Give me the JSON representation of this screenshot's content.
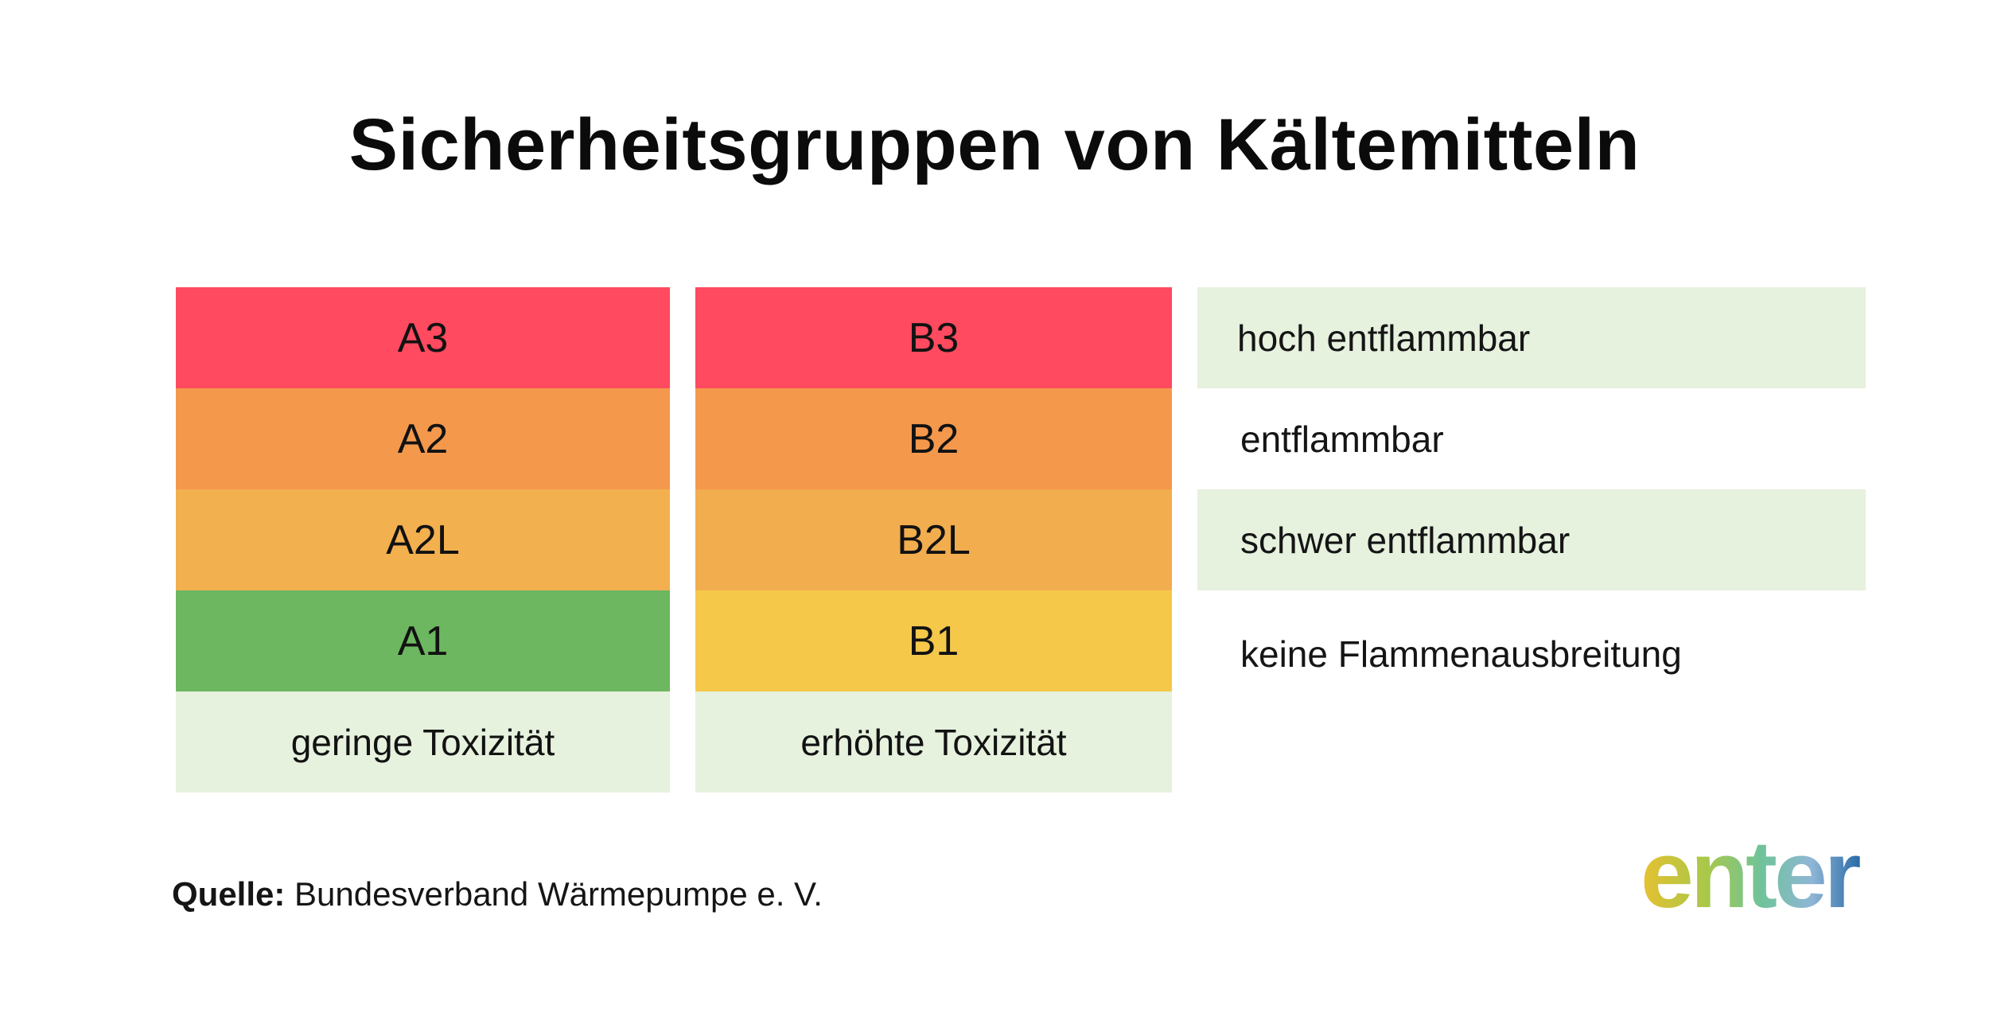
{
  "title": "Sicherheitsgruppen von Kältemitteln",
  "table": {
    "column_a": {
      "cells": [
        "A3",
        "A2",
        "A2L",
        "A1"
      ],
      "footer": "geringe Toxizität"
    },
    "column_b": {
      "cells": [
        "B3",
        "B2",
        "B2L",
        "B1"
      ],
      "footer": "erhöhte Toxizität"
    },
    "legend": [
      "hoch entflammbar",
      "entflammbar",
      "schwer entflammbar",
      "keine Flammenausbreitung"
    ]
  },
  "colors": {
    "level_3": "#ff4a5f",
    "level_2": "#f4984c",
    "level_2l": "#f3b04f",
    "a1": "#6cb75f",
    "b1": "#f5c84a",
    "shaded": "#e6f1de"
  },
  "source": {
    "label": "Quelle:",
    "text": " Bundesverband Wärmepumpe e. V."
  },
  "logo": {
    "text": "enter"
  }
}
